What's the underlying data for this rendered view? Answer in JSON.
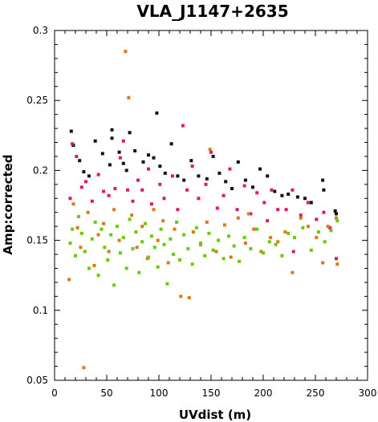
{
  "chart_data": {
    "type": "scatter",
    "title": "VLA_J1147+2635",
    "xlabel": "UVdist (m)",
    "ylabel": "Amp:corrected",
    "xlim": [
      0,
      300
    ],
    "ylim": [
      0.05,
      0.3
    ],
    "x_ticks": [
      "0",
      "50",
      "100",
      "150",
      "200",
      "250",
      "300"
    ],
    "y_ticks": [
      "0.05",
      "0.1",
      "0.15",
      "0.2",
      "0.25",
      "0.3"
    ],
    "grid": false,
    "legend": "none",
    "series": [
      {
        "color": "#111111",
        "points": [
          [
            16,
            0.228
          ],
          [
            18,
            0.218
          ],
          [
            24,
            0.207
          ],
          [
            28,
            0.199
          ],
          [
            33,
            0.196
          ],
          [
            39,
            0.221
          ],
          [
            46,
            0.212
          ],
          [
            53,
            0.204
          ],
          [
            55,
            0.223
          ],
          [
            55,
            0.229
          ],
          [
            62,
            0.213
          ],
          [
            66,
            0.205
          ],
          [
            69,
            0.2
          ],
          [
            72,
            0.227
          ],
          [
            77,
            0.214
          ],
          [
            85,
            0.206
          ],
          [
            90,
            0.211
          ],
          [
            95,
            0.209
          ],
          [
            98,
            0.241
          ],
          [
            101,
            0.203
          ],
          [
            106,
            0.198
          ],
          [
            112,
            0.219
          ],
          [
            118,
            0.196
          ],
          [
            124,
            0.193
          ],
          [
            131,
            0.207
          ],
          [
            138,
            0.196
          ],
          [
            146,
            0.194
          ],
          [
            152,
            0.21
          ],
          [
            158,
            0.198
          ],
          [
            164,
            0.192
          ],
          [
            170,
            0.187
          ],
          [
            176,
            0.206
          ],
          [
            183,
            0.193
          ],
          [
            190,
            0.188
          ],
          [
            197,
            0.201
          ],
          [
            204,
            0.196
          ],
          [
            211,
            0.185
          ],
          [
            218,
            0.182
          ],
          [
            224,
            0.183
          ],
          [
            233,
            0.181
          ],
          [
            240,
            0.18
          ],
          [
            246,
            0.177
          ],
          [
            257,
            0.193
          ],
          [
            258,
            0.186
          ],
          [
            269,
            0.171
          ],
          [
            270,
            0.169
          ]
        ]
      },
      {
        "color": "#e0156e",
        "points": [
          [
            15,
            0.18
          ],
          [
            17,
            0.219
          ],
          [
            21,
            0.21
          ],
          [
            26,
            0.188
          ],
          [
            30,
            0.192
          ],
          [
            36,
            0.178
          ],
          [
            42,
            0.197
          ],
          [
            47,
            0.185
          ],
          [
            52,
            0.182
          ],
          [
            58,
            0.187
          ],
          [
            63,
            0.209
          ],
          [
            66,
            0.221
          ],
          [
            70,
            0.186
          ],
          [
            75,
            0.178
          ],
          [
            80,
            0.193
          ],
          [
            84,
            0.186
          ],
          [
            90,
            0.201
          ],
          [
            93,
            0.176
          ],
          [
            101,
            0.19
          ],
          [
            105,
            0.18
          ],
          [
            113,
            0.196
          ],
          [
            118,
            0.172
          ],
          [
            123,
            0.232
          ],
          [
            127,
            0.186
          ],
          [
            132,
            0.203
          ],
          [
            138,
            0.18
          ],
          [
            145,
            0.19
          ],
          [
            150,
            0.213
          ],
          [
            156,
            0.173
          ],
          [
            162,
            0.182
          ],
          [
            168,
            0.201
          ],
          [
            175,
            0.172
          ],
          [
            182,
            0.189
          ],
          [
            188,
            0.169
          ],
          [
            194,
            0.184
          ],
          [
            201,
            0.177
          ],
          [
            208,
            0.186
          ],
          [
            214,
            0.172
          ],
          [
            222,
            0.172
          ],
          [
            228,
            0.186
          ],
          [
            236,
            0.168
          ],
          [
            243,
            0.177
          ],
          [
            251,
            0.165
          ],
          [
            258,
            0.17
          ],
          [
            264,
            0.159
          ],
          [
            270,
            0.137
          ],
          [
            229,
            0.142
          ],
          [
            204,
            0.164
          ]
        ]
      },
      {
        "color": "#e0761a",
        "points": [
          [
            14,
            0.122
          ],
          [
            18,
            0.176
          ],
          [
            22,
            0.159
          ],
          [
            25,
            0.145
          ],
          [
            28,
            0.059
          ],
          [
            32,
            0.17
          ],
          [
            38,
            0.132
          ],
          [
            42,
            0.154
          ],
          [
            47,
            0.162
          ],
          [
            52,
            0.142
          ],
          [
            57,
            0.172
          ],
          [
            62,
            0.15
          ],
          [
            68,
            0.285
          ],
          [
            71,
            0.252
          ],
          [
            74,
            0.168
          ],
          [
            79,
            0.145
          ],
          [
            84,
            0.16
          ],
          [
            89,
            0.137
          ],
          [
            95,
            0.172
          ],
          [
            99,
            0.15
          ],
          [
            104,
            0.164
          ],
          [
            109,
            0.134
          ],
          [
            115,
            0.158
          ],
          [
            121,
            0.11
          ],
          [
            129,
            0.109
          ],
          [
            133,
            0.156
          ],
          [
            140,
            0.147
          ],
          [
            146,
            0.163
          ],
          [
            149,
            0.215
          ],
          [
            155,
            0.142
          ],
          [
            163,
            0.161
          ],
          [
            169,
            0.138
          ],
          [
            176,
            0.166
          ],
          [
            183,
            0.148
          ],
          [
            191,
            0.158
          ],
          [
            198,
            0.142
          ],
          [
            207,
            0.152
          ],
          [
            214,
            0.149
          ],
          [
            221,
            0.156
          ],
          [
            228,
            0.127
          ],
          [
            236,
            0.166
          ],
          [
            243,
            0.16
          ],
          [
            251,
            0.152
          ],
          [
            257,
            0.134
          ],
          [
            262,
            0.16
          ],
          [
            270,
            0.166
          ],
          [
            271,
            0.133
          ],
          [
            186,
            0.169
          ]
        ]
      },
      {
        "color": "#66cc00",
        "points": [
          [
            15,
            0.148
          ],
          [
            17,
            0.158
          ],
          [
            20,
            0.139
          ],
          [
            23,
            0.167
          ],
          [
            26,
            0.155
          ],
          [
            29,
            0.142
          ],
          [
            33,
            0.13
          ],
          [
            36,
            0.151
          ],
          [
            39,
            0.163
          ],
          [
            42,
            0.125
          ],
          [
            45,
            0.158
          ],
          [
            48,
            0.145
          ],
          [
            51,
            0.136
          ],
          [
            54,
            0.154
          ],
          [
            57,
            0.118
          ],
          [
            60,
            0.16
          ],
          [
            63,
            0.141
          ],
          [
            66,
            0.152
          ],
          [
            69,
            0.13
          ],
          [
            72,
            0.165
          ],
          [
            75,
            0.144
          ],
          [
            78,
            0.156
          ],
          [
            81,
            0.127
          ],
          [
            84,
            0.149
          ],
          [
            87,
            0.162
          ],
          [
            90,
            0.138
          ],
          [
            93,
            0.153
          ],
          [
            96,
            0.145
          ],
          [
            99,
            0.131
          ],
          [
            102,
            0.158
          ],
          [
            105,
            0.147
          ],
          [
            108,
            0.119
          ],
          [
            111,
            0.151
          ],
          [
            114,
            0.14
          ],
          [
            117,
            0.163
          ],
          [
            120,
            0.136
          ],
          [
            124,
            0.154
          ],
          [
            128,
            0.144
          ],
          [
            132,
            0.133
          ],
          [
            136,
            0.159
          ],
          [
            140,
            0.148
          ],
          [
            144,
            0.139
          ],
          [
            148,
            0.155
          ],
          [
            152,
            0.143
          ],
          [
            157,
            0.15
          ],
          [
            162,
            0.137
          ],
          [
            167,
            0.153
          ],
          [
            172,
            0.146
          ],
          [
            177,
            0.135
          ],
          [
            182,
            0.152
          ],
          [
            188,
            0.144
          ],
          [
            194,
            0.158
          ],
          [
            200,
            0.141
          ],
          [
            206,
            0.149
          ],
          [
            212,
            0.147
          ],
          [
            218,
            0.139
          ],
          [
            224,
            0.155
          ],
          [
            230,
            0.152
          ],
          [
            238,
            0.159
          ],
          [
            246,
            0.143
          ],
          [
            253,
            0.156
          ],
          [
            259,
            0.149
          ],
          [
            265,
            0.157
          ],
          [
            271,
            0.164
          ]
        ]
      }
    ]
  }
}
